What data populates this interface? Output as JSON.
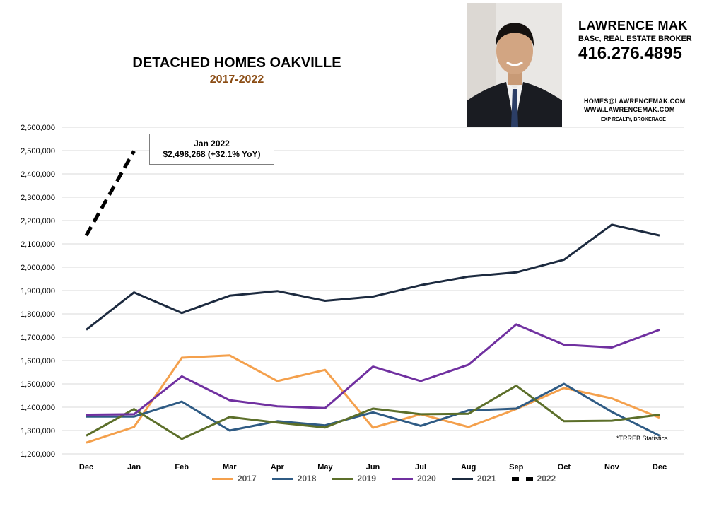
{
  "header": {
    "title": "DETACHED HOMES OAKVILLE",
    "subtitle": "2017-2022"
  },
  "agent": {
    "name": "LAWRENCE MAK",
    "role": "BASc, REAL ESTATE BROKER",
    "phone": "416.276.4895",
    "email": "HOMES@LAWRENCEMAK.COM",
    "website": "WWW.LAWRENCEMAK.COM",
    "brokerage": "EXP REALTY, BROKERAGE"
  },
  "callout": {
    "line1": "Jan 2022",
    "line2": "$2,498,268  (+32.1%  YoY)"
  },
  "note": "*TRREB Statistics",
  "chart_data": {
    "type": "line",
    "categories": [
      "Dec",
      "Jan",
      "Feb",
      "Mar",
      "Apr",
      "May",
      "Jun",
      "Jul",
      "Aug",
      "Sep",
      "Oct",
      "Nov",
      "Dec"
    ],
    "ylim": [
      1200000,
      2600000
    ],
    "yticks": [
      "1,200,000",
      "1,300,000",
      "1,400,000",
      "1,500,000",
      "1,600,000",
      "1,700,000",
      "1,800,000",
      "1,900,000",
      "2,000,000",
      "2,100,000",
      "2,200,000",
      "2,300,000",
      "2,400,000",
      "2,500,000",
      "2,600,000"
    ],
    "grid": true,
    "legend_position": "bottom",
    "series": [
      {
        "name": "2017",
        "color": "#f4a04c",
        "dashed": false,
        "values": [
          1248000,
          1315000,
          1612000,
          1622000,
          1512000,
          1560000,
          1312000,
          1370000,
          1315000,
          1392000,
          1482000,
          1438000,
          1355000
        ]
      },
      {
        "name": "2018",
        "color": "#2f5b84",
        "dashed": false,
        "values": [
          1360000,
          1360000,
          1424000,
          1300000,
          1340000,
          1322000,
          1378000,
          1320000,
          1386000,
          1394000,
          1500000,
          1380000,
          1278000
        ]
      },
      {
        "name": "2019",
        "color": "#5c6f2a",
        "dashed": false,
        "values": [
          1278000,
          1392000,
          1264000,
          1358000,
          1334000,
          1313000,
          1394000,
          1370000,
          1372000,
          1492000,
          1340000,
          1342000,
          1368000
        ]
      },
      {
        "name": "2020",
        "color": "#7030a0",
        "dashed": false,
        "values": [
          1368000,
          1370000,
          1532000,
          1430000,
          1404000,
          1396000,
          1574000,
          1512000,
          1582000,
          1755000,
          1668000,
          1656000,
          1732000
        ]
      },
      {
        "name": "2021",
        "color": "#1c2a3f",
        "dashed": false,
        "values": [
          1732000,
          1892000,
          1804000,
          1878000,
          1898000,
          1856000,
          1874000,
          1923000,
          1960000,
          1978000,
          2032000,
          2182000,
          2136000
        ]
      },
      {
        "name": "2022",
        "color": "#000000",
        "dashed": true,
        "values": [
          2136000,
          2498268,
          null,
          null,
          null,
          null,
          null,
          null,
          null,
          null,
          null,
          null,
          null
        ]
      }
    ]
  }
}
